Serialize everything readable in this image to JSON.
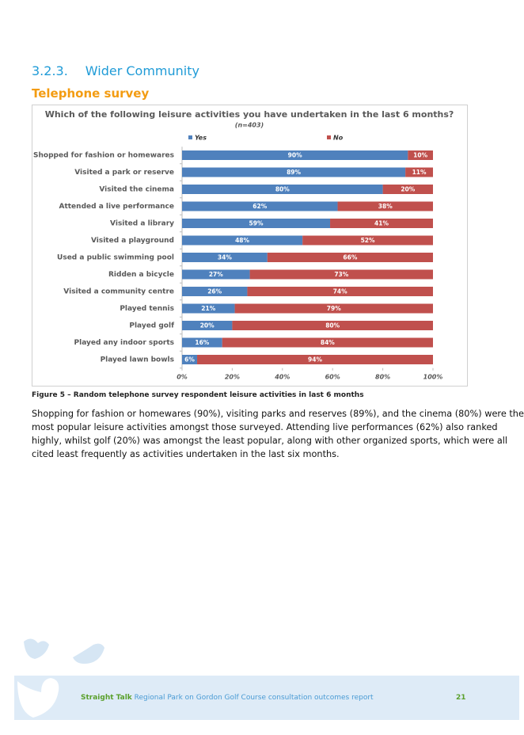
{
  "heading": {
    "number": "3.2.3.",
    "title": "Wider Community"
  },
  "subheading": "Telephone survey",
  "chart_data": {
    "type": "stacked-barh",
    "title": "Which of the following leisure activities you have undertaken in the last 6 months?",
    "subtitle": "(n=403)",
    "categories": [
      "Shopped for fashion or homewares",
      "Visited a park or reserve",
      "Visited the cinema",
      "Attended a live performance",
      "Visited a library",
      "Visited a playground",
      "Used a public swimming pool",
      "Ridden a bicycle",
      "Visited a community centre",
      "Played tennis",
      "Played golf",
      "Played any indoor sports",
      "Played lawn bowls"
    ],
    "series": [
      {
        "name": "Yes",
        "color": "#4f81bd",
        "values": [
          90,
          89,
          80,
          62,
          59,
          48,
          34,
          27,
          26,
          21,
          20,
          16,
          6
        ],
        "value_labels": [
          "90%",
          "89%",
          "80%",
          "62%",
          "59%",
          "48%",
          "34%",
          "27%",
          "26%",
          "21%",
          "20%",
          "16%",
          "6%"
        ]
      },
      {
        "name": "No",
        "color": "#c0504d",
        "values": [
          10,
          11,
          20,
          38,
          41,
          52,
          66,
          73,
          74,
          79,
          80,
          84,
          94
        ],
        "value_labels": [
          "10%",
          "11%",
          "20%",
          "38%",
          "41%",
          "52%",
          "66%",
          "73%",
          "74%",
          "79%",
          "80%",
          "84%",
          "94%"
        ]
      }
    ],
    "xlim": [
      0,
      100
    ],
    "xticks": [
      {
        "value": 0,
        "label": "0%"
      },
      {
        "value": 20,
        "label": "20%"
      },
      {
        "value": 40,
        "label": "40%"
      },
      {
        "value": 60,
        "label": "60%"
      },
      {
        "value": 80,
        "label": "80%"
      },
      {
        "value": 100,
        "label": "100%"
      }
    ],
    "legend": "top"
  },
  "caption": "Figure 5 – Random telephone survey respondent leisure activities in last 6 months",
  "paragraph": [
    "Shopping for fashion or homewares (90%), visiting parks and reserves (89%), and the cinema (80%) were the",
    "most popular leisure activities amongst those surveyed. Attending live performances (62%) also ranked",
    "highly, whilst golf (20%) was amongst the least popular, along with other organized sports, which were all",
    "cited least frequently as activities undertaken in the last six months."
  ],
  "footer": {
    "brand": "Straight Talk",
    "report": "Regional Park on Gordon Golf Course consultation outcomes report",
    "page": "21"
  }
}
